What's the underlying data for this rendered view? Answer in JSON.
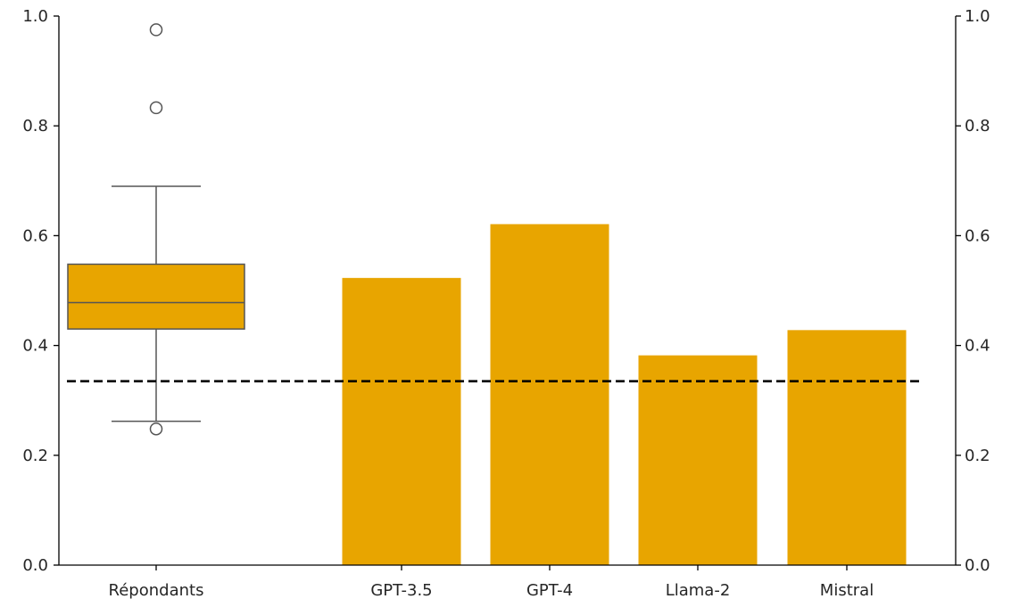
{
  "chart_data": {
    "type": "bar",
    "categories": [
      "Répondants",
      "GPT-3.5",
      "GPT-4",
      "Llama-2",
      "Mistral"
    ],
    "boxplot": {
      "category": "Répondants",
      "q1": 0.43,
      "median": 0.478,
      "q3": 0.548,
      "whisker_low": 0.262,
      "whisker_high": 0.69,
      "outliers": [
        0.975,
        0.833,
        0.248
      ]
    },
    "bars": [
      {
        "category": "GPT-3.5",
        "value": 0.523
      },
      {
        "category": "GPT-4",
        "value": 0.621
      },
      {
        "category": "Llama-2",
        "value": 0.382
      },
      {
        "category": "Mistral",
        "value": 0.428
      }
    ],
    "reference_line": {
      "value": 0.335,
      "style": "dashed"
    },
    "ylim": [
      0,
      1.0
    ],
    "yticks": [
      "0.0",
      "0.2",
      "0.4",
      "0.6",
      "0.8",
      "1.0"
    ],
    "secondary_yticks": [
      "0.0",
      "0.2",
      "0.4",
      "0.6",
      "0.8",
      "1.0"
    ],
    "title": "",
    "xlabel": "",
    "ylabel": "",
    "grid": false,
    "colors": {
      "bar": "#E8A500",
      "box_fill": "#E8A500",
      "box_edge": "#555555",
      "reference_line": "#000000"
    }
  }
}
